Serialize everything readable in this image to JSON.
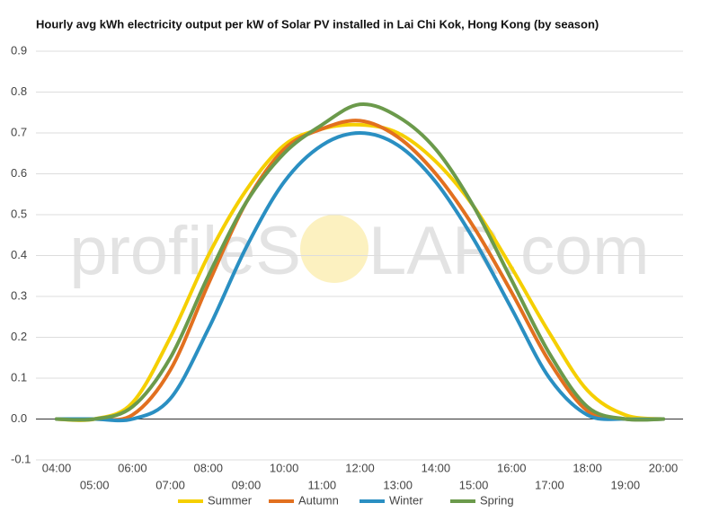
{
  "chart_data": {
    "type": "line",
    "title": "Hourly avg kWh electricity output per kW of Solar PV installed in Lai Chi Kok, Hong Kong (by season)",
    "watermark": [
      "profileS",
      "LAR.com"
    ],
    "categories": [
      "04:00",
      "05:00",
      "06:00",
      "07:00",
      "08:00",
      "09:00",
      "10:00",
      "11:00",
      "12:00",
      "13:00",
      "14:00",
      "15:00",
      "16:00",
      "17:00",
      "18:00",
      "19:00",
      "20:00"
    ],
    "series": [
      {
        "name": "Summer",
        "color": "#f5cf00",
        "values": [
          0,
          0,
          0.04,
          0.2,
          0.4,
          0.56,
          0.67,
          0.71,
          0.72,
          0.7,
          0.63,
          0.52,
          0.37,
          0.21,
          0.07,
          0.01,
          0
        ]
      },
      {
        "name": "Autumn",
        "color": "#e2701f",
        "values": [
          0,
          0,
          0.01,
          0.12,
          0.33,
          0.53,
          0.66,
          0.71,
          0.73,
          0.69,
          0.6,
          0.47,
          0.31,
          0.14,
          0.02,
          0,
          0
        ]
      },
      {
        "name": "Winter",
        "color": "#2a8fc2",
        "values": [
          0,
          0,
          0,
          0.05,
          0.22,
          0.42,
          0.58,
          0.67,
          0.7,
          0.67,
          0.58,
          0.44,
          0.27,
          0.1,
          0.01,
          0,
          0
        ]
      },
      {
        "name": "Spring",
        "color": "#6b9a4b",
        "values": [
          0,
          0,
          0.03,
          0.15,
          0.35,
          0.53,
          0.65,
          0.72,
          0.77,
          0.74,
          0.66,
          0.52,
          0.34,
          0.16,
          0.03,
          0,
          0
        ]
      }
    ],
    "ylim": [
      -0.1,
      0.9
    ],
    "yticks": [
      -0.1,
      {
        "value": 0,
        "label": "0.0"
      },
      0.1,
      0.2,
      0.3,
      0.4,
      0.5,
      0.6,
      0.7,
      0.8,
      0.9
    ],
    "grid": true,
    "legend": "bottom"
  }
}
